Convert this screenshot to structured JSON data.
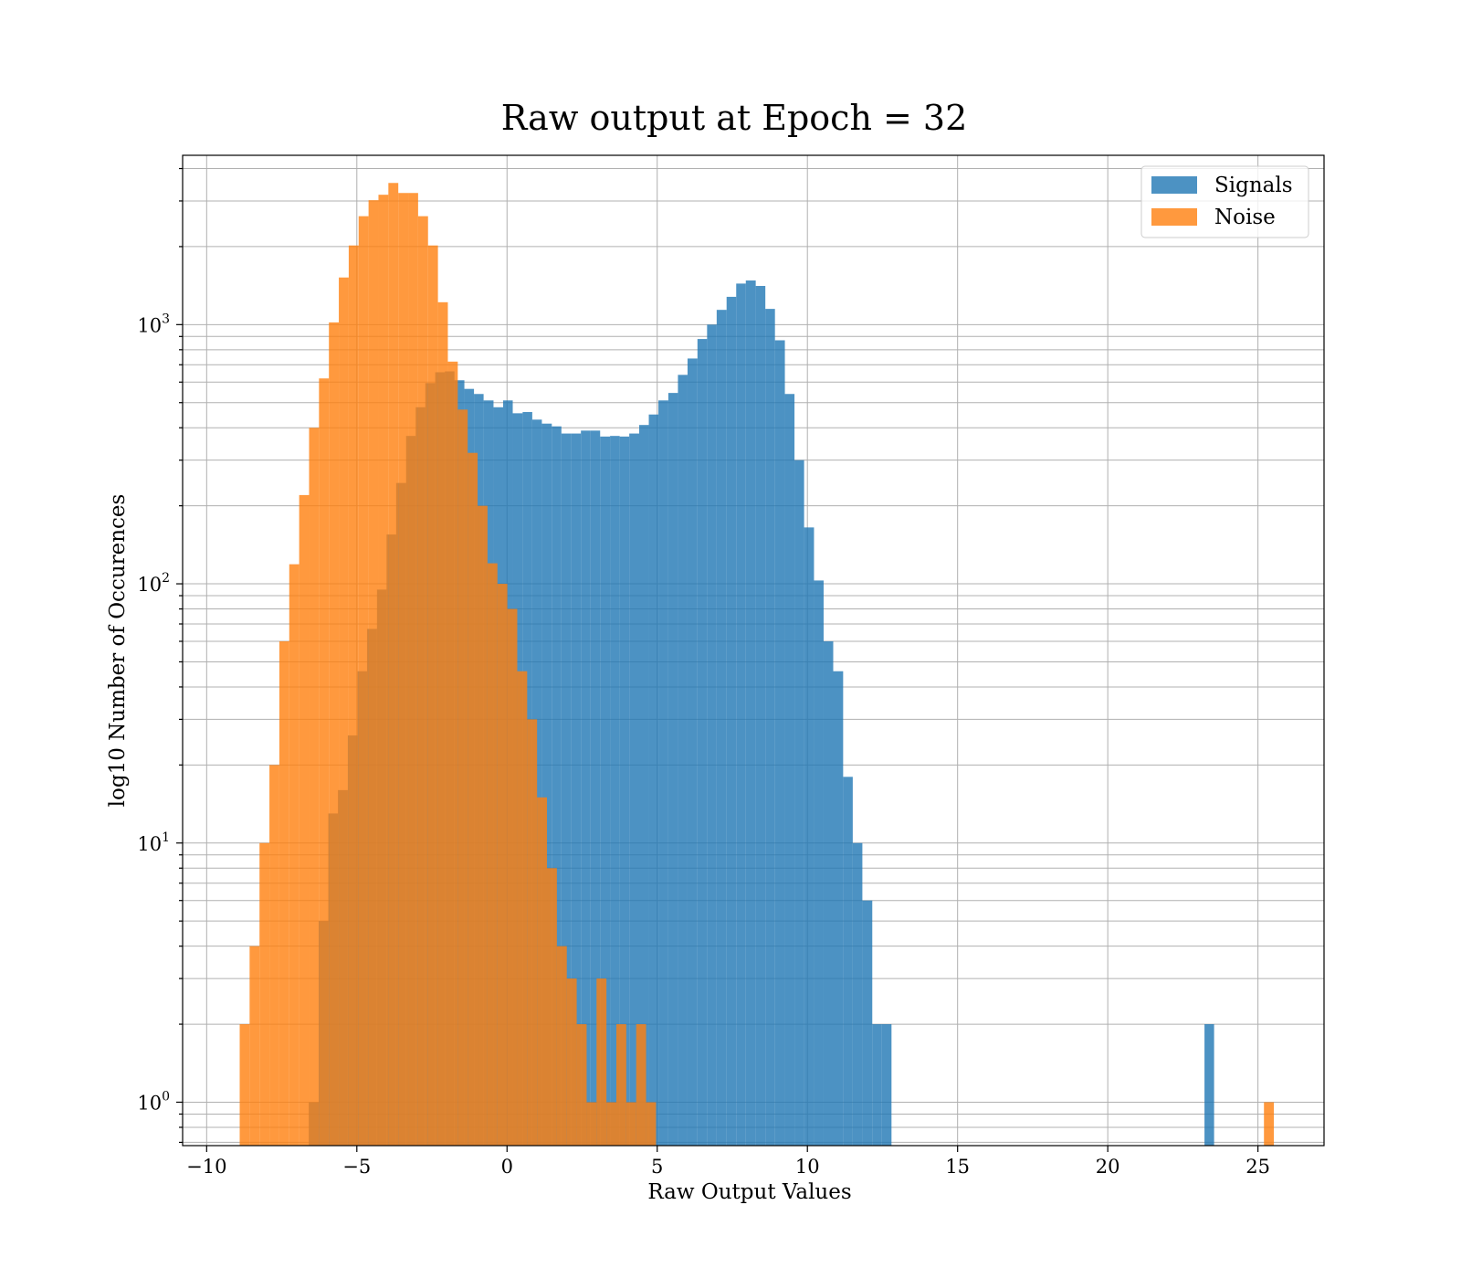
{
  "chart_data": {
    "type": "histogram",
    "title": "Raw output at Epoch = 32",
    "xlabel": "Raw Output Values",
    "ylabel": "log10 Number of Occurences",
    "xscale": "linear",
    "yscale": "log",
    "xlim": [
      -10.8,
      27.2
    ],
    "ylim": [
      0.68,
      4500
    ],
    "grid": true,
    "grid_minor_y": true,
    "legend_position": "upper right",
    "x_ticks": [
      {
        "value": -10,
        "label": "−10"
      },
      {
        "value": -5,
        "label": "−5"
      },
      {
        "value": 0,
        "label": "0"
      },
      {
        "value": 5,
        "label": "5"
      },
      {
        "value": 10,
        "label": "10"
      },
      {
        "value": 15,
        "label": "15"
      },
      {
        "value": 20,
        "label": "20"
      },
      {
        "value": 25,
        "label": "25"
      }
    ],
    "y_ticks": [
      {
        "value": 1,
        "base": "10",
        "exp": "0"
      },
      {
        "value": 10,
        "base": "10",
        "exp": "1"
      },
      {
        "value": 100,
        "base": "10",
        "exp": "2"
      },
      {
        "value": 1000,
        "base": "10",
        "exp": "3"
      }
    ],
    "series": [
      {
        "name": "Signals",
        "color": "#1f77b4",
        "alpha": 0.8,
        "bins": [
          [
            -6.6,
            -6.27,
            1
          ],
          [
            -6.27,
            -5.95,
            5
          ],
          [
            -5.95,
            -5.63,
            13
          ],
          [
            -5.63,
            -5.3,
            16
          ],
          [
            -5.3,
            -4.98,
            26
          ],
          [
            -4.98,
            -4.66,
            46
          ],
          [
            -4.66,
            -4.33,
            67
          ],
          [
            -4.33,
            -4.01,
            95
          ],
          [
            -4.01,
            -3.69,
            155
          ],
          [
            -3.69,
            -3.36,
            245
          ],
          [
            -3.36,
            -3.04,
            372
          ],
          [
            -3.04,
            -2.72,
            480
          ],
          [
            -2.72,
            -2.39,
            595
          ],
          [
            -2.39,
            -2.07,
            655
          ],
          [
            -2.07,
            -1.75,
            660
          ],
          [
            -1.75,
            -1.42,
            610
          ],
          [
            -1.42,
            -1.1,
            565
          ],
          [
            -1.1,
            -0.78,
            540
          ],
          [
            -0.78,
            -0.45,
            510
          ],
          [
            -0.45,
            -0.13,
            480
          ],
          [
            -0.13,
            0.19,
            510
          ],
          [
            0.19,
            0.52,
            455
          ],
          [
            0.52,
            0.84,
            460
          ],
          [
            0.84,
            1.16,
            430
          ],
          [
            1.16,
            1.49,
            415
          ],
          [
            1.49,
            1.81,
            405
          ],
          [
            1.81,
            2.13,
            380
          ],
          [
            2.13,
            2.46,
            380
          ],
          [
            2.46,
            2.78,
            390
          ],
          [
            2.78,
            3.1,
            390
          ],
          [
            3.1,
            3.43,
            370
          ],
          [
            3.43,
            3.75,
            372
          ],
          [
            3.75,
            4.07,
            370
          ],
          [
            4.07,
            4.4,
            380
          ],
          [
            4.4,
            4.72,
            410
          ],
          [
            4.72,
            5.04,
            450
          ],
          [
            5.04,
            5.37,
            510
          ],
          [
            5.37,
            5.69,
            545
          ],
          [
            5.69,
            6.01,
            640
          ],
          [
            6.01,
            6.34,
            740
          ],
          [
            6.34,
            6.66,
            880
          ],
          [
            6.66,
            6.98,
            1000
          ],
          [
            6.98,
            7.31,
            1140
          ],
          [
            7.31,
            7.63,
            1280
          ],
          [
            7.63,
            7.95,
            1440
          ],
          [
            7.95,
            8.28,
            1480
          ],
          [
            8.28,
            8.6,
            1410
          ],
          [
            8.6,
            8.92,
            1150
          ],
          [
            8.92,
            9.25,
            870
          ],
          [
            9.25,
            9.57,
            540
          ],
          [
            9.57,
            9.89,
            300
          ],
          [
            9.89,
            10.22,
            165
          ],
          [
            10.22,
            10.54,
            103
          ],
          [
            10.54,
            10.86,
            60
          ],
          [
            10.86,
            11.19,
            46
          ],
          [
            11.19,
            11.51,
            18
          ],
          [
            11.51,
            11.83,
            10
          ],
          [
            11.83,
            12.16,
            6
          ],
          [
            12.16,
            12.48,
            2
          ],
          [
            12.48,
            12.8,
            2
          ],
          [
            23.22,
            23.54,
            2
          ]
        ]
      },
      {
        "name": "Noise",
        "color": "#ff7f0e",
        "alpha": 0.8,
        "bins": [
          [
            -8.9,
            -8.57,
            2
          ],
          [
            -8.57,
            -8.24,
            4
          ],
          [
            -8.24,
            -7.91,
            10
          ],
          [
            -7.91,
            -7.58,
            20
          ],
          [
            -7.58,
            -7.25,
            60
          ],
          [
            -7.25,
            -6.92,
            119
          ],
          [
            -6.92,
            -6.59,
            220
          ],
          [
            -6.59,
            -6.26,
            400
          ],
          [
            -6.26,
            -5.93,
            620
          ],
          [
            -5.93,
            -5.6,
            1020
          ],
          [
            -5.6,
            -5.27,
            1520
          ],
          [
            -5.27,
            -4.94,
            2020
          ],
          [
            -4.94,
            -4.61,
            2620
          ],
          [
            -4.61,
            -4.28,
            3020
          ],
          [
            -4.28,
            -3.95,
            3170
          ],
          [
            -3.95,
            -3.62,
            3520
          ],
          [
            -3.62,
            -3.29,
            3220
          ],
          [
            -3.29,
            -2.96,
            3220
          ],
          [
            -2.96,
            -2.63,
            2620
          ],
          [
            -2.63,
            -2.3,
            2020
          ],
          [
            -2.3,
            -1.97,
            1220
          ],
          [
            -1.97,
            -1.64,
            720
          ],
          [
            -1.64,
            -1.31,
            470
          ],
          [
            -1.31,
            -0.98,
            320
          ],
          [
            -0.98,
            -0.65,
            200
          ],
          [
            -0.65,
            -0.32,
            120
          ],
          [
            -0.32,
            0.01,
            100
          ],
          [
            0.01,
            0.34,
            80
          ],
          [
            0.34,
            0.67,
            46
          ],
          [
            0.67,
            1.0,
            30
          ],
          [
            1.0,
            1.33,
            15
          ],
          [
            1.33,
            1.66,
            8
          ],
          [
            1.66,
            1.99,
            4
          ],
          [
            1.99,
            2.32,
            3
          ],
          [
            2.32,
            2.65,
            2
          ],
          [
            2.65,
            2.98,
            1
          ],
          [
            2.98,
            3.31,
            3
          ],
          [
            3.31,
            3.64,
            1
          ],
          [
            3.64,
            3.97,
            2
          ],
          [
            3.97,
            4.3,
            1
          ],
          [
            4.3,
            4.63,
            2
          ],
          [
            4.63,
            4.96,
            1
          ],
          [
            25.2,
            25.53,
            1
          ]
        ]
      }
    ]
  }
}
